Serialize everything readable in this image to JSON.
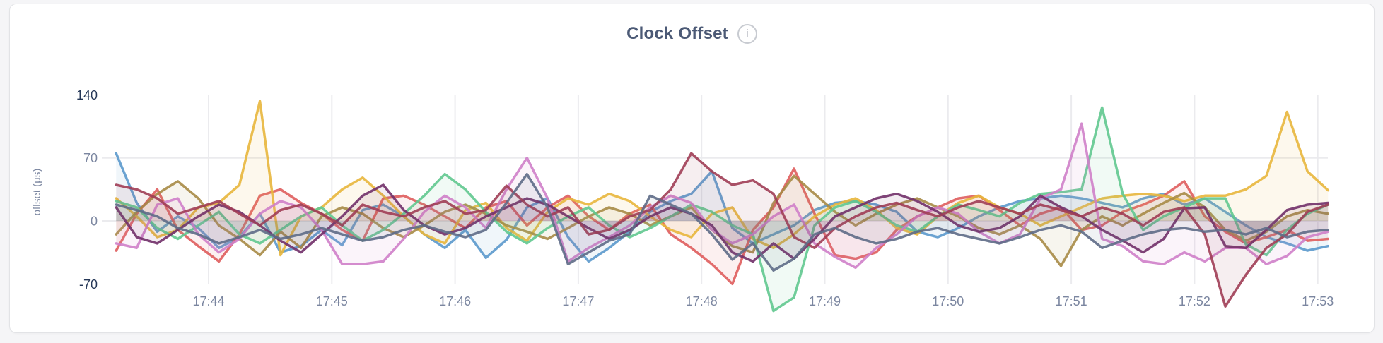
{
  "card": {
    "title": "Clock Offset",
    "info_icon_glyph": "i"
  },
  "colors": {
    "page_bg": "#f5f5f7",
    "card_bg": "#ffffff",
    "card_border": "#e2e3e6",
    "title": "#4c5a76",
    "axis_tick": "#7b86a0",
    "axis_tick_strong": "#253757",
    "grid": "#ebebee",
    "info_icon": "#a6abb5"
  },
  "chart_data": {
    "type": "line",
    "title": "Clock Offset",
    "xlabel": "",
    "ylabel": "offset (µs)",
    "x_ticks": [
      "17:44",
      "17:45",
      "17:46",
      "17:47",
      "17:48",
      "17:49",
      "17:50",
      "17:51",
      "17:52",
      "17:53"
    ],
    "y_ticks": [
      140,
      70,
      0,
      -70
    ],
    "y_grid_values": [
      70,
      0
    ],
    "ylim": [
      -100,
      145
    ],
    "x_domain": [
      "17:43:15",
      "17:53:05"
    ],
    "sample_interval_seconds": 10,
    "grid": true,
    "legend": "none",
    "fill_to_zero": true,
    "series": [
      {
        "id": "node-blue",
        "color": "#5b99cc",
        "values": [
          75,
          20,
          -12,
          5,
          -8,
          -30,
          -18,
          8,
          -35,
          -28,
          -10,
          -27,
          12,
          18,
          5,
          -15,
          -30,
          -10,
          -41,
          -21,
          15,
          25,
          -18,
          -45,
          -30,
          -12,
          10,
          22,
          30,
          55,
          -8,
          -25,
          -15,
          -5,
          12,
          20,
          22,
          18,
          10,
          -12,
          -18,
          -8,
          5,
          15,
          22,
          25,
          28,
          25,
          20,
          15,
          25,
          30,
          18,
          25,
          10,
          -5,
          -18,
          -25,
          -33,
          -28
        ]
      },
      {
        "id": "node-red",
        "color": "#df5d5d",
        "values": [
          -33,
          8,
          35,
          -10,
          -28,
          -45,
          -15,
          28,
          35,
          20,
          8,
          -10,
          -22,
          25,
          28,
          18,
          5,
          -8,
          15,
          22,
          -5,
          15,
          28,
          5,
          -10,
          8,
          18,
          -15,
          -30,
          -48,
          -70,
          -10,
          15,
          58,
          8,
          -38,
          -42,
          -35,
          -10,
          5,
          15,
          25,
          28,
          12,
          -5,
          8,
          15,
          -10,
          -5,
          10,
          18,
          28,
          44,
          5,
          -12,
          -25,
          -18,
          -10,
          -22,
          -20
        ]
      },
      {
        "id": "node-gold",
        "color": "#e8b63c",
        "values": [
          25,
          5,
          -18,
          -10,
          15,
          20,
          40,
          133,
          -38,
          5,
          15,
          35,
          48,
          28,
          5,
          -15,
          -25,
          12,
          20,
          -8,
          -22,
          10,
          25,
          18,
          30,
          22,
          5,
          -10,
          -18,
          8,
          15,
          -20,
          -30,
          -15,
          5,
          18,
          25,
          12,
          -8,
          -15,
          5,
          20,
          28,
          15,
          8,
          -5,
          5,
          15,
          25,
          28,
          30,
          28,
          22,
          28,
          28,
          35,
          50,
          121,
          55,
          34
        ]
      },
      {
        "id": "node-olive",
        "color": "#a78b46",
        "values": [
          -15,
          10,
          30,
          44,
          25,
          -5,
          -20,
          -38,
          -12,
          -30,
          5,
          15,
          8,
          -8,
          -18,
          -5,
          10,
          18,
          8,
          -5,
          -12,
          -20,
          -8,
          5,
          15,
          8,
          -5,
          5,
          15,
          -10,
          -28,
          -35,
          20,
          50,
          30,
          10,
          -5,
          8,
          18,
          25,
          15,
          5,
          -8,
          -15,
          -5,
          -20,
          -50,
          -10,
          5,
          -5,
          8,
          20,
          31,
          15,
          -10,
          -22,
          -12,
          5,
          12,
          8
        ]
      },
      {
        "id": "node-green",
        "color": "#61c88f",
        "values": [
          22,
          15,
          -8,
          -20,
          -5,
          10,
          -15,
          -25,
          -10,
          5,
          15,
          -5,
          -22,
          -10,
          8,
          28,
          52,
          35,
          10,
          -12,
          -25,
          -8,
          5,
          15,
          -5,
          -18,
          -8,
          5,
          18,
          10,
          -5,
          -15,
          -100,
          -85,
          -5,
          15,
          22,
          10,
          -5,
          -12,
          5,
          18,
          12,
          5,
          20,
          30,
          32,
          35,
          126,
          30,
          -10,
          5,
          15,
          25,
          25,
          -26,
          -38,
          -10,
          8,
          18
        ]
      },
      {
        "id": "node-orchid",
        "color": "#cf80c9",
        "values": [
          -25,
          -30,
          18,
          25,
          -15,
          -35,
          -20,
          8,
          22,
          15,
          -10,
          -48,
          -48,
          -45,
          -20,
          10,
          28,
          15,
          -8,
          35,
          70,
          25,
          -45,
          -30,
          -18,
          -5,
          15,
          28,
          20,
          -10,
          -25,
          -15,
          5,
          18,
          -25,
          -40,
          -52,
          -30,
          -15,
          5,
          15,
          8,
          -12,
          -25,
          -15,
          25,
          35,
          108,
          -20,
          -28,
          -45,
          -48,
          -35,
          -45,
          -30,
          -30,
          -48,
          -39,
          -18,
          -12
        ]
      },
      {
        "id": "node-purple",
        "color": "#713069",
        "values": [
          15,
          -18,
          -25,
          -10,
          5,
          18,
          10,
          -5,
          -22,
          -35,
          -15,
          5,
          28,
          40,
          12,
          -5,
          -15,
          -8,
          5,
          15,
          25,
          18,
          5,
          -8,
          -20,
          -10,
          5,
          15,
          8,
          -5,
          -35,
          -45,
          -25,
          -42,
          -20,
          5,
          15,
          25,
          30,
          22,
          10,
          -5,
          -12,
          -8,
          5,
          28,
          15,
          5,
          -10,
          -22,
          -35,
          -20,
          14,
          15,
          -28,
          -30,
          -10,
          12,
          18,
          20
        ]
      },
      {
        "id": "node-maroon",
        "color": "#a03d55",
        "values": [
          40,
          35,
          25,
          8,
          15,
          22,
          8,
          -5,
          12,
          18,
          8,
          -5,
          18,
          10,
          5,
          15,
          22,
          8,
          12,
          39,
          18,
          5,
          15,
          -15,
          -10,
          5,
          12,
          35,
          75,
          55,
          40,
          45,
          30,
          -18,
          -30,
          -8,
          5,
          15,
          20,
          12,
          5,
          15,
          22,
          15,
          8,
          18,
          12,
          5,
          15,
          8,
          -5,
          10,
          15,
          -15,
          -95,
          -60,
          -30,
          -15,
          10,
          18
        ]
      },
      {
        "id": "node-slate",
        "color": "#5e6c87",
        "values": [
          18,
          12,
          5,
          -8,
          -15,
          -25,
          -18,
          -10,
          -20,
          -15,
          -8,
          -15,
          -22,
          -18,
          -10,
          -5,
          -12,
          -18,
          -10,
          20,
          52,
          15,
          -48,
          -35,
          -22,
          -15,
          28,
          18,
          8,
          -15,
          -43,
          -25,
          -55,
          -42,
          -15,
          -8,
          -18,
          -25,
          -20,
          -12,
          -8,
          -15,
          -20,
          -25,
          -18,
          -10,
          -5,
          -12,
          -30,
          -22,
          -15,
          -10,
          -8,
          -12,
          -10,
          -15,
          -8,
          -18,
          -12,
          -10
        ]
      }
    ]
  }
}
